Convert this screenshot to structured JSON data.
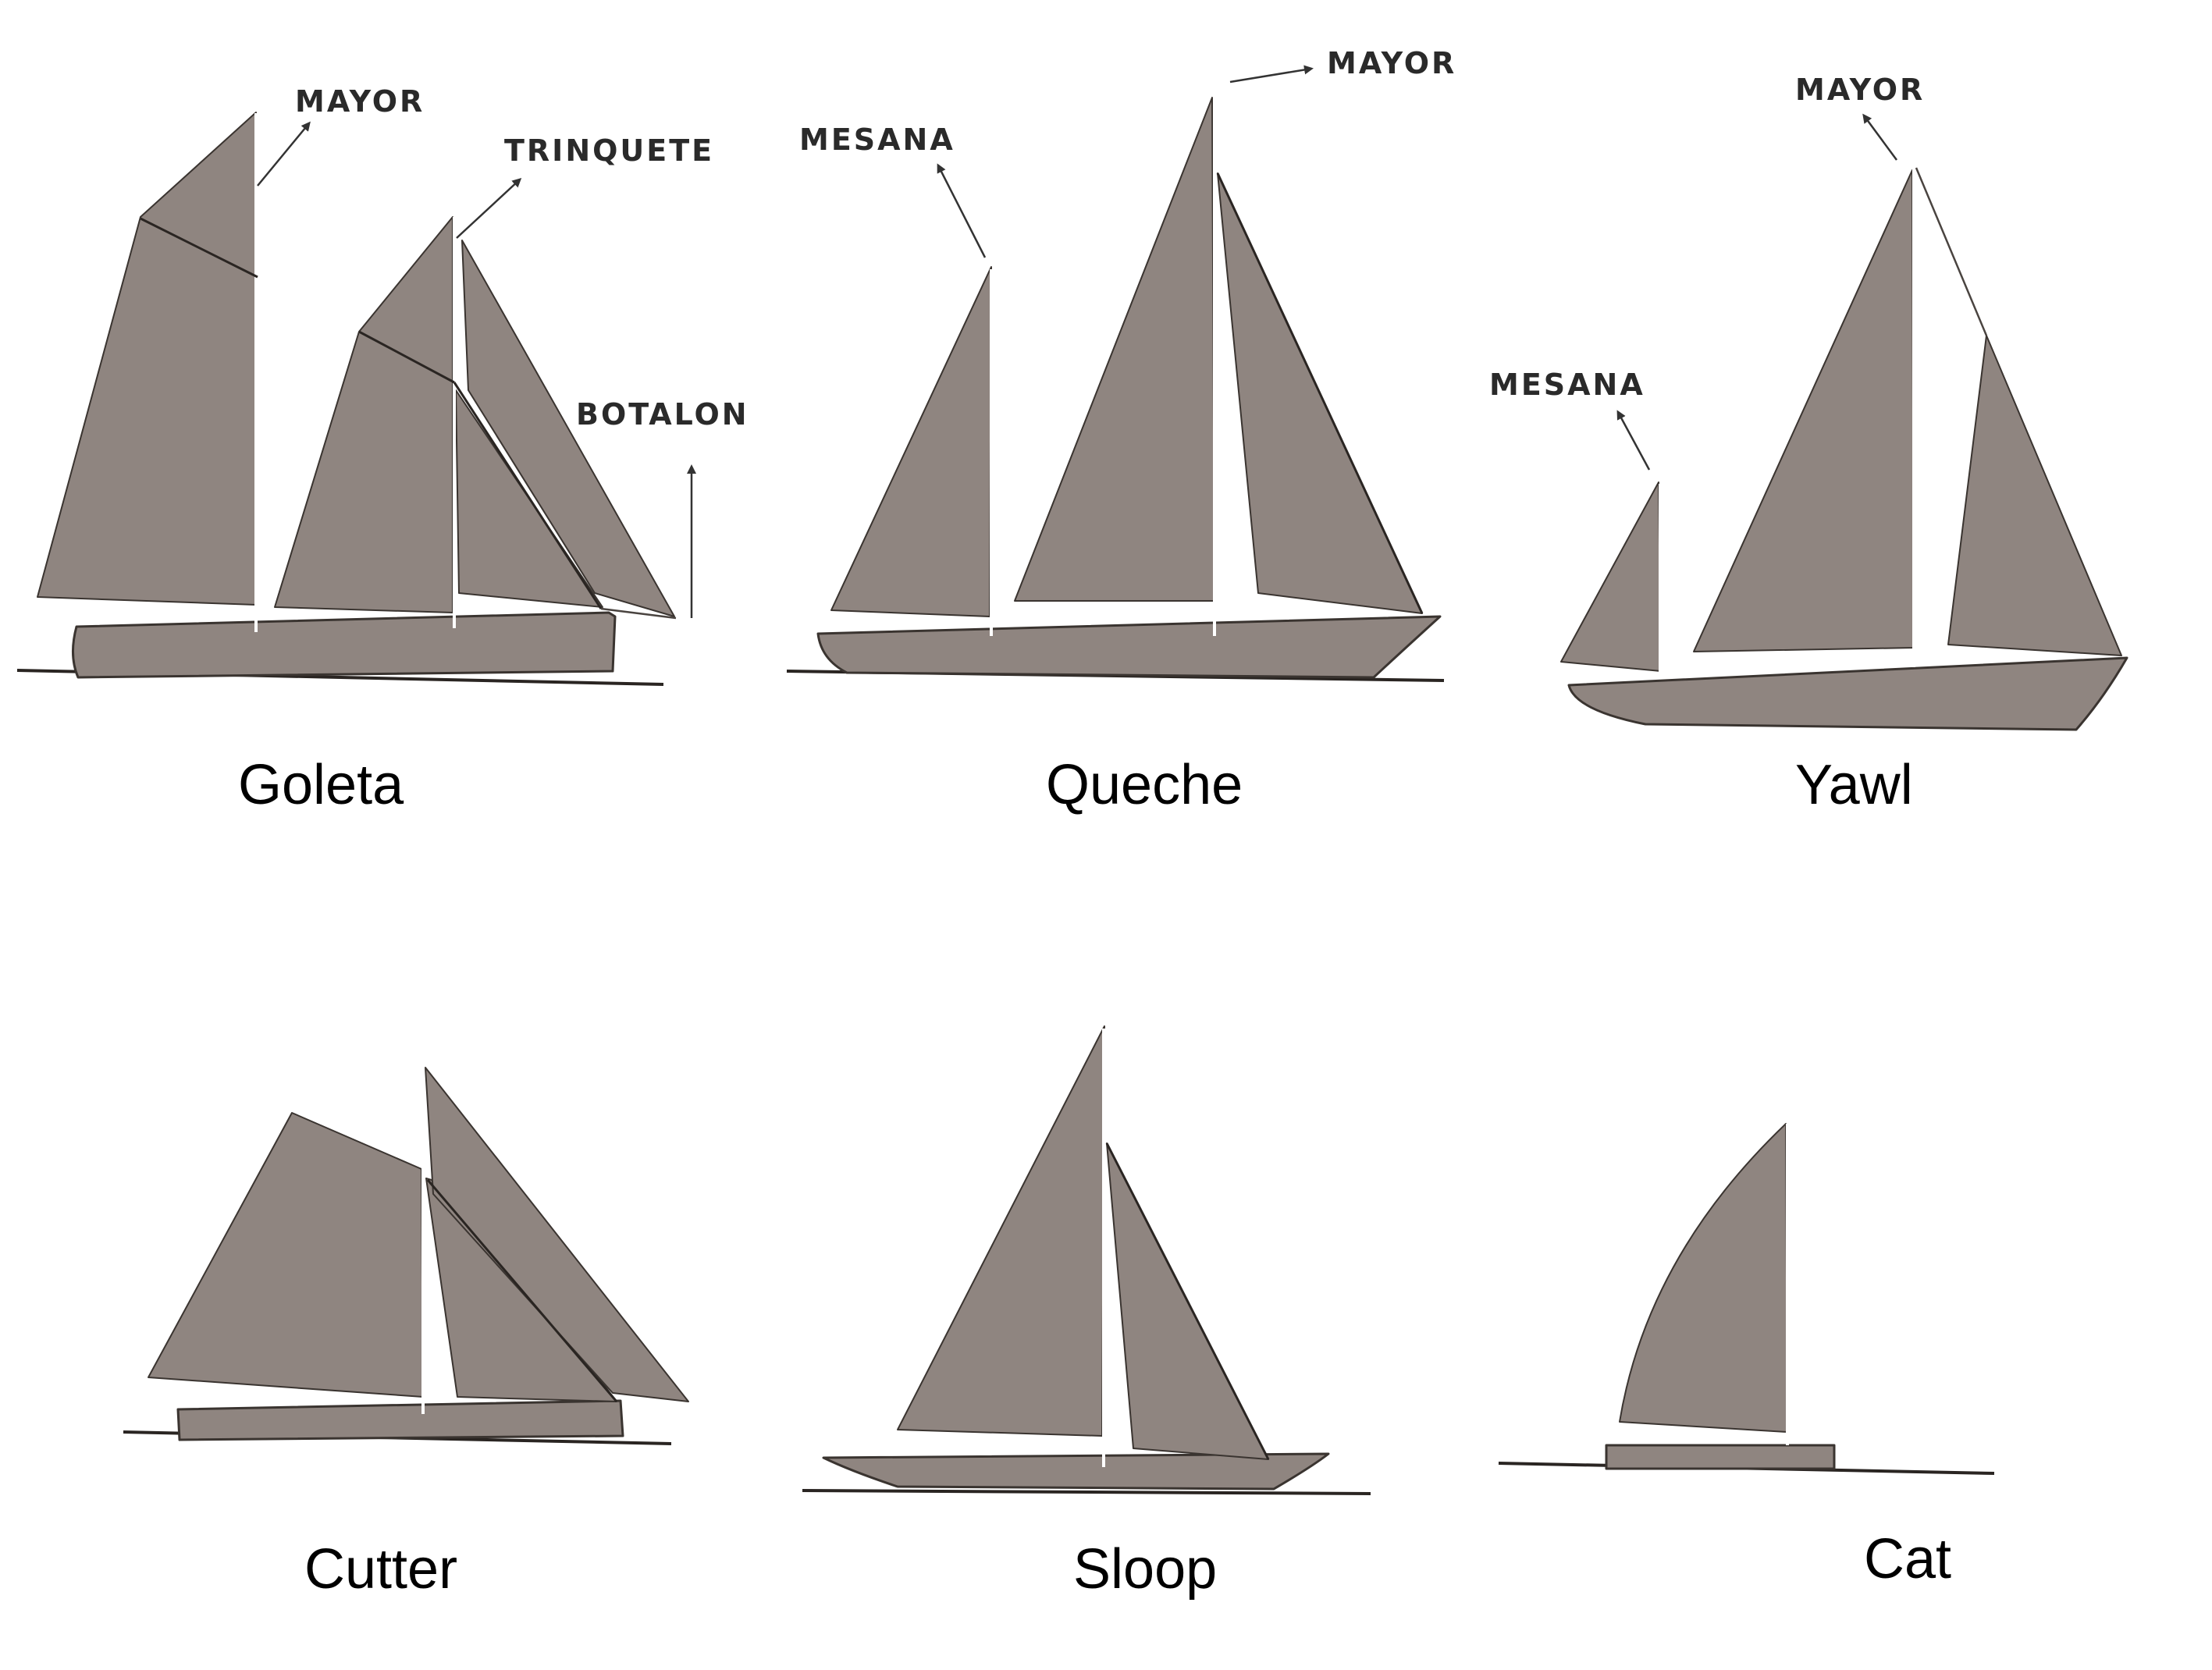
{
  "colors": {
    "sail": "#8f8580",
    "hull": "#8f8580",
    "outline": "#3a3430",
    "background": "#ffffff"
  },
  "boats": [
    {
      "name": "Goleta",
      "labels": [
        "MAYOR",
        "TRINQUETE",
        "BOTALON"
      ]
    },
    {
      "name": "Queche",
      "labels": [
        "MESANA",
        "MAYOR"
      ]
    },
    {
      "name": "Yawl",
      "labels": [
        "MAYOR",
        "MESANA"
      ]
    },
    {
      "name": "Cutter",
      "labels": []
    },
    {
      "name": "Sloop",
      "labels": []
    },
    {
      "name": "Cat",
      "labels": []
    }
  ]
}
